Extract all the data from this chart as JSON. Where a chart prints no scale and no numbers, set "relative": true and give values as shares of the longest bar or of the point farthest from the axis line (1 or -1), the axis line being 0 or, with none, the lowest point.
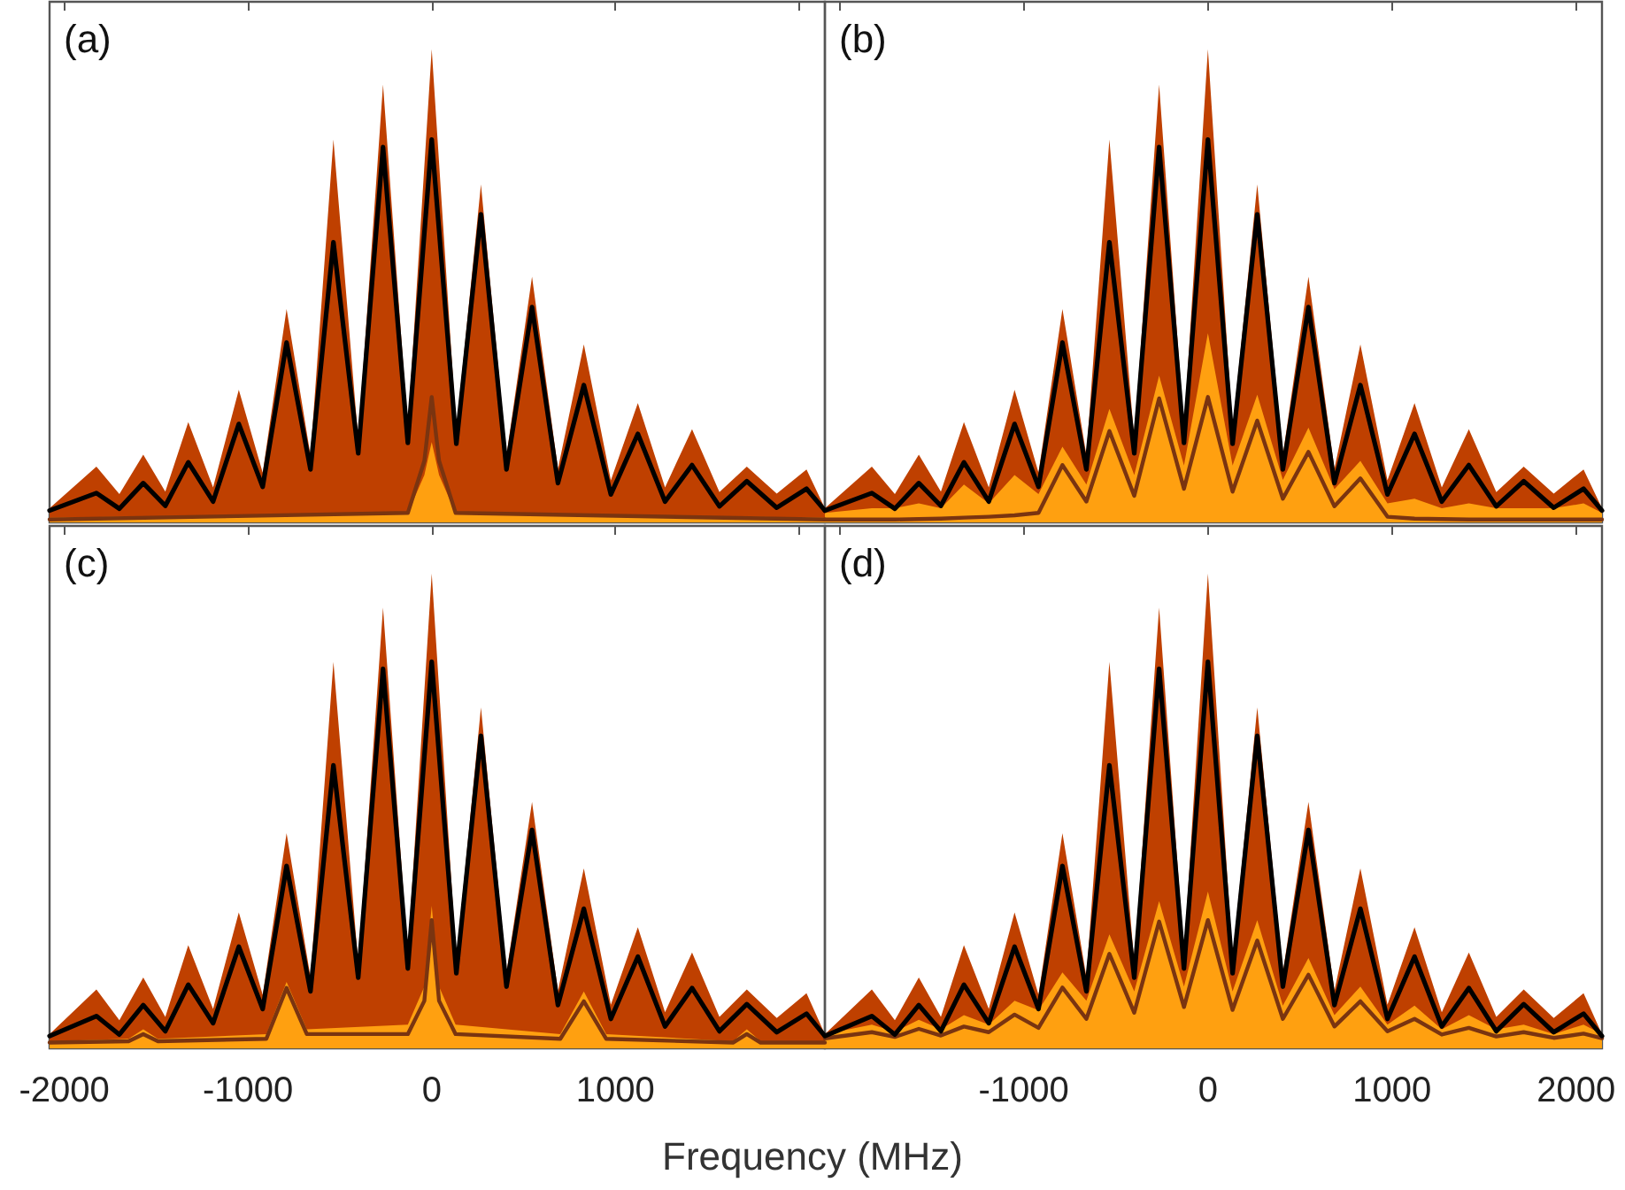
{
  "chart_data": [
    {
      "type": "area",
      "relative": true,
      "annotations": [
        "(a)"
      ],
      "xlim": [
        -2080,
        2140
      ],
      "xticks": [
        -2000,
        -1000,
        0,
        1000,
        2000
      ],
      "tick_labels": false,
      "series": [
        {
          "color": "#bf4000",
          "x": [
            -2080,
            -1825,
            -1700,
            -1570,
            -1450,
            -1325,
            -1190,
            -1050,
            -920,
            -790,
            -660,
            -535,
            -400,
            -265,
            -130,
            0,
            134,
            268,
            407,
            546,
            687,
            828,
            975,
            1122,
            1270,
            1417,
            1566,
            1715,
            1878,
            2040,
            2140
          ],
          "values": [
            0.03,
            0.118,
            0.06,
            0.143,
            0.065,
            0.212,
            0.074,
            0.28,
            0.105,
            0.451,
            0.142,
            0.809,
            0.176,
            0.925,
            0.198,
            1,
            0.196,
            0.714,
            0.142,
            0.519,
            0.113,
            0.376,
            0.089,
            0.252,
            0.074,
            0.197,
            0.064,
            0.118,
            0.061,
            0.112,
            0.03
          ]
        },
        {
          "color": "#ffa010",
          "x": [
            -2080,
            -130,
            -40,
            0,
            40,
            130,
            2140
          ],
          "values": [
            0.01,
            0.02,
            0.1,
            0.17,
            0.1,
            0.02,
            0.01
          ]
        },
        {
          "type": "line",
          "color": "#7a3410",
          "x": [
            -2080,
            -130,
            -40,
            0,
            40,
            130,
            2140
          ],
          "values": [
            0.006,
            0.02,
            0.13,
            0.265,
            0.13,
            0.02,
            0.006
          ]
        },
        {
          "type": "line",
          "color": "#000000",
          "x": [
            -2080,
            -1825,
            -1700,
            -1570,
            -1450,
            -1325,
            -1190,
            -1050,
            -920,
            -790,
            -660,
            -535,
            -400,
            -265,
            -130,
            0,
            134,
            268,
            407,
            546,
            687,
            828,
            975,
            1122,
            1270,
            1417,
            1566,
            1715,
            1878,
            2040,
            2140
          ],
          "values": [
            0.025,
            0.062,
            0.029,
            0.083,
            0.035,
            0.127,
            0.044,
            0.208,
            0.075,
            0.38,
            0.112,
            0.592,
            0.146,
            0.793,
            0.168,
            0.809,
            0.166,
            0.651,
            0.112,
            0.455,
            0.083,
            0.29,
            0.059,
            0.187,
            0.044,
            0.121,
            0.034,
            0.087,
            0.031,
            0.071,
            0.025
          ]
        }
      ]
    },
    {
      "type": "area",
      "relative": true,
      "annotations": [
        "(b)"
      ],
      "xlim": [
        -2080,
        2140
      ],
      "xticks": [
        -2000,
        -1000,
        0,
        1000,
        2000
      ],
      "tick_labels": false,
      "series": [
        {
          "color": "#bf4000",
          "x": [
            -2080,
            -1825,
            -1700,
            -1570,
            -1450,
            -1325,
            -1190,
            -1050,
            -920,
            -790,
            -660,
            -535,
            -400,
            -265,
            -130,
            0,
            134,
            268,
            407,
            546,
            687,
            828,
            975,
            1122,
            1270,
            1417,
            1566,
            1715,
            1878,
            2040,
            2140
          ],
          "values": [
            0.03,
            0.118,
            0.06,
            0.143,
            0.065,
            0.212,
            0.074,
            0.28,
            0.105,
            0.451,
            0.142,
            0.809,
            0.176,
            0.925,
            0.198,
            1,
            0.196,
            0.714,
            0.142,
            0.519,
            0.113,
            0.376,
            0.089,
            0.252,
            0.074,
            0.197,
            0.064,
            0.118,
            0.061,
            0.112,
            0.03
          ]
        },
        {
          "color": "#ffa010",
          "x": [
            -2080,
            -1825,
            -1700,
            -1570,
            -1450,
            -1325,
            -1190,
            -1050,
            -920,
            -790,
            -660,
            -535,
            -400,
            -265,
            -130,
            0,
            134,
            268,
            407,
            546,
            687,
            828,
            975,
            1122,
            1270,
            1417,
            1566,
            1715,
            1878,
            2040,
            2140
          ],
          "values": [
            0.02,
            0.03,
            0.03,
            0.04,
            0.03,
            0.08,
            0.04,
            0.1,
            0.06,
            0.16,
            0.08,
            0.24,
            0.1,
            0.31,
            0.12,
            0.4,
            0.12,
            0.27,
            0.09,
            0.2,
            0.07,
            0.13,
            0.04,
            0.05,
            0.03,
            0.04,
            0.03,
            0.03,
            0.03,
            0.04,
            0.02
          ]
        },
        {
          "type": "line",
          "color": "#7a3410",
          "x": [
            -2080,
            -1825,
            -1700,
            -1570,
            -1450,
            -1325,
            -1190,
            -1050,
            -920,
            -790,
            -660,
            -535,
            -400,
            -265,
            -130,
            0,
            134,
            268,
            407,
            546,
            687,
            828,
            975,
            1122,
            1270,
            1417,
            1566,
            1715,
            1878,
            2040,
            2140
          ],
          "values": [
            0.006,
            0.006,
            0.006,
            0.007,
            0.008,
            0.01,
            0.012,
            0.015,
            0.02,
            0.121,
            0.044,
            0.193,
            0.056,
            0.262,
            0.071,
            0.265,
            0.065,
            0.215,
            0.05,
            0.149,
            0.034,
            0.093,
            0.012,
            0.008,
            0.007,
            0.006,
            0.006,
            0.006,
            0.006,
            0.006,
            0.006
          ]
        },
        {
          "type": "line",
          "color": "#000000",
          "x": [
            -2080,
            -1825,
            -1700,
            -1570,
            -1450,
            -1325,
            -1190,
            -1050,
            -920,
            -790,
            -660,
            -535,
            -400,
            -265,
            -130,
            0,
            134,
            268,
            407,
            546,
            687,
            828,
            975,
            1122,
            1270,
            1417,
            1566,
            1715,
            1878,
            2040,
            2140
          ],
          "values": [
            0.025,
            0.062,
            0.029,
            0.083,
            0.035,
            0.127,
            0.044,
            0.208,
            0.075,
            0.38,
            0.112,
            0.592,
            0.146,
            0.793,
            0.168,
            0.809,
            0.166,
            0.651,
            0.112,
            0.455,
            0.083,
            0.29,
            0.059,
            0.187,
            0.044,
            0.121,
            0.034,
            0.087,
            0.031,
            0.071,
            0.025
          ]
        }
      ]
    },
    {
      "type": "area",
      "relative": true,
      "annotations": [
        "(c)"
      ],
      "xlabel": "Frequency (MHz)",
      "xlim": [
        -2080,
        2140
      ],
      "xticks": [
        -2000,
        -1000,
        0,
        1000,
        {
          "value": 2000,
          "label": null
        }
      ],
      "tick_labels": "x",
      "series": [
        {
          "color": "#bf4000",
          "x": [
            -2080,
            -1825,
            -1700,
            -1570,
            -1450,
            -1325,
            -1190,
            -1050,
            -920,
            -790,
            -660,
            -535,
            -400,
            -265,
            -130,
            0,
            134,
            268,
            407,
            546,
            687,
            828,
            975,
            1122,
            1270,
            1417,
            1566,
            1715,
            1878,
            2040,
            2140
          ],
          "values": [
            0.03,
            0.124,
            0.059,
            0.149,
            0.066,
            0.217,
            0.083,
            0.286,
            0.113,
            0.453,
            0.15,
            0.814,
            0.179,
            0.928,
            0.198,
            1,
            0.188,
            0.718,
            0.16,
            0.519,
            0.121,
            0.379,
            0.092,
            0.255,
            0.076,
            0.202,
            0.066,
            0.124,
            0.064,
            0.116,
            0.03
          ]
        },
        {
          "color": "#ffa010",
          "x": [
            -2080,
            -1650,
            -1570,
            -1490,
            -900,
            -790,
            -680,
            -130,
            -40,
            0,
            40,
            130,
            700,
            828,
            950,
            1640,
            1715,
            1790,
            2140
          ],
          "values": [
            0.015,
            0.02,
            0.04,
            0.02,
            0.03,
            0.14,
            0.04,
            0.05,
            0.13,
            0.3,
            0.13,
            0.05,
            0.03,
            0.12,
            0.03,
            0.015,
            0.04,
            0.015,
            0.015
          ]
        },
        {
          "type": "line",
          "color": "#7a3410",
          "x": [
            -2080,
            -1650,
            -1570,
            -1490,
            -900,
            -790,
            -680,
            -130,
            -40,
            0,
            40,
            130,
            700,
            828,
            950,
            1640,
            1715,
            1790,
            2140
          ],
          "values": [
            0.012,
            0.015,
            0.03,
            0.015,
            0.02,
            0.127,
            0.03,
            0.03,
            0.1,
            0.27,
            0.1,
            0.03,
            0.02,
            0.099,
            0.02,
            0.012,
            0.03,
            0.012,
            0.012
          ]
        },
        {
          "type": "line",
          "color": "#000000",
          "x": [
            -2080,
            -1825,
            -1700,
            -1570,
            -1450,
            -1325,
            -1190,
            -1050,
            -920,
            -790,
            -660,
            -535,
            -400,
            -265,
            -130,
            0,
            134,
            268,
            407,
            546,
            687,
            828,
            975,
            1122,
            1270,
            1417,
            1566,
            1715,
            1878,
            2040,
            2140
          ],
          "values": [
            0.026,
            0.068,
            0.029,
            0.091,
            0.036,
            0.134,
            0.053,
            0.214,
            0.083,
            0.384,
            0.12,
            0.596,
            0.149,
            0.799,
            0.168,
            0.814,
            0.158,
            0.658,
            0.13,
            0.46,
            0.091,
            0.294,
            0.062,
            0.193,
            0.046,
            0.127,
            0.036,
            0.093,
            0.034,
            0.073,
            0.026
          ]
        }
      ]
    },
    {
      "type": "area",
      "relative": true,
      "annotations": [
        "(d)"
      ],
      "xlim": [
        -2080,
        2140
      ],
      "xticks": [
        {
          "value": -2000,
          "label": null
        },
        -1000,
        0,
        1000,
        2000
      ],
      "tick_labels": "x",
      "series": [
        {
          "color": "#bf4000",
          "x": [
            -2080,
            -1825,
            -1700,
            -1570,
            -1450,
            -1325,
            -1190,
            -1050,
            -920,
            -790,
            -660,
            -535,
            -400,
            -265,
            -130,
            0,
            134,
            268,
            407,
            546,
            687,
            828,
            975,
            1122,
            1270,
            1417,
            1566,
            1715,
            1878,
            2040,
            2140
          ],
          "values": [
            0.03,
            0.124,
            0.059,
            0.149,
            0.066,
            0.217,
            0.083,
            0.286,
            0.113,
            0.453,
            0.15,
            0.814,
            0.179,
            0.928,
            0.198,
            1,
            0.188,
            0.718,
            0.16,
            0.519,
            0.121,
            0.379,
            0.092,
            0.255,
            0.076,
            0.202,
            0.066,
            0.124,
            0.064,
            0.116,
            0.03
          ]
        },
        {
          "color": "#ffa010",
          "x": [
            -2080,
            -1825,
            -1700,
            -1570,
            -1450,
            -1325,
            -1190,
            -1050,
            -920,
            -790,
            -660,
            -535,
            -400,
            -265,
            -130,
            0,
            134,
            268,
            407,
            546,
            687,
            828,
            975,
            1122,
            1270,
            1417,
            1566,
            1715,
            1878,
            2040,
            2140
          ],
          "values": [
            0.03,
            0.05,
            0.035,
            0.06,
            0.04,
            0.07,
            0.05,
            0.1,
            0.08,
            0.16,
            0.1,
            0.24,
            0.12,
            0.31,
            0.13,
            0.33,
            0.12,
            0.27,
            0.09,
            0.19,
            0.07,
            0.13,
            0.05,
            0.09,
            0.04,
            0.07,
            0.04,
            0.05,
            0.03,
            0.05,
            0.03
          ]
        },
        {
          "type": "line",
          "color": "#7a3410",
          "x": [
            -2080,
            -1825,
            -1700,
            -1570,
            -1450,
            -1325,
            -1190,
            -1050,
            -920,
            -790,
            -660,
            -535,
            -400,
            -265,
            -130,
            0,
            134,
            268,
            407,
            546,
            687,
            828,
            975,
            1122,
            1270,
            1417,
            1566,
            1715,
            1878,
            2040,
            2140
          ],
          "values": [
            0.021,
            0.034,
            0.024,
            0.041,
            0.027,
            0.046,
            0.034,
            0.071,
            0.043,
            0.128,
            0.062,
            0.199,
            0.075,
            0.267,
            0.087,
            0.27,
            0.081,
            0.227,
            0.062,
            0.155,
            0.046,
            0.099,
            0.036,
            0.062,
            0.029,
            0.043,
            0.025,
            0.034,
            0.022,
            0.031,
            0.021
          ]
        },
        {
          "type": "line",
          "color": "#000000",
          "x": [
            -2080,
            -1825,
            -1700,
            -1570,
            -1450,
            -1325,
            -1190,
            -1050,
            -920,
            -790,
            -660,
            -535,
            -400,
            -265,
            -130,
            0,
            134,
            268,
            407,
            546,
            687,
            828,
            975,
            1122,
            1270,
            1417,
            1566,
            1715,
            1878,
            2040,
            2140
          ],
          "values": [
            0.026,
            0.068,
            0.029,
            0.091,
            0.036,
            0.134,
            0.053,
            0.214,
            0.083,
            0.384,
            0.12,
            0.596,
            0.149,
            0.799,
            0.168,
            0.814,
            0.158,
            0.658,
            0.13,
            0.46,
            0.091,
            0.294,
            0.062,
            0.193,
            0.046,
            0.127,
            0.036,
            0.093,
            0.034,
            0.073,
            0.026
          ]
        }
      ]
    }
  ]
}
